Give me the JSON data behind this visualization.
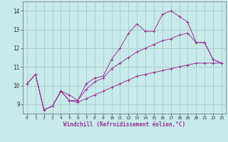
{
  "background_color": "#c8eaea",
  "grid_color": "#aacccc",
  "line_color": "#993399",
  "xlabel": "Windchill (Refroidissement éolien,°C)",
  "xlim": [
    -0.5,
    23.5
  ],
  "ylim": [
    8.5,
    14.5
  ],
  "yticks": [
    9,
    10,
    11,
    12,
    13,
    14
  ],
  "xticks": [
    0,
    1,
    2,
    3,
    4,
    5,
    6,
    7,
    8,
    9,
    10,
    11,
    12,
    13,
    14,
    15,
    16,
    17,
    18,
    19,
    20,
    21,
    22,
    23
  ],
  "series": [
    {
      "x": [
        0,
        1,
        2,
        3,
        4,
        5,
        6,
        7,
        8,
        9,
        10,
        11,
        12,
        13,
        14,
        15,
        16,
        17,
        18,
        19,
        20,
        21,
        22,
        23
      ],
      "y": [
        10.1,
        10.6,
        8.7,
        8.9,
        9.7,
        9.5,
        9.2,
        10.1,
        10.4,
        10.5,
        11.4,
        12.0,
        12.8,
        13.3,
        12.9,
        12.9,
        13.8,
        14.0,
        13.7,
        13.4,
        12.3,
        12.3,
        11.4,
        11.2
      ]
    },
    {
      "x": [
        0,
        1,
        2,
        3,
        4,
        5,
        6,
        7,
        8,
        9,
        10,
        11,
        12,
        13,
        14,
        15,
        16,
        17,
        18,
        19,
        20,
        21,
        22,
        23
      ],
      "y": [
        10.1,
        10.6,
        8.7,
        8.9,
        9.7,
        9.2,
        9.2,
        9.8,
        10.2,
        10.4,
        10.9,
        11.2,
        11.5,
        11.8,
        12.0,
        12.2,
        12.4,
        12.5,
        12.7,
        12.8,
        12.3,
        12.3,
        11.4,
        11.2
      ]
    },
    {
      "x": [
        0,
        1,
        2,
        3,
        4,
        5,
        6,
        7,
        8,
        9,
        10,
        11,
        12,
        13,
        14,
        15,
        16,
        17,
        18,
        19,
        20,
        21,
        22,
        23
      ],
      "y": [
        10.1,
        10.6,
        8.7,
        8.9,
        9.7,
        9.2,
        9.1,
        9.3,
        9.5,
        9.7,
        9.9,
        10.1,
        10.3,
        10.5,
        10.6,
        10.7,
        10.8,
        10.9,
        11.0,
        11.1,
        11.2,
        11.2,
        11.2,
        11.2
      ]
    }
  ]
}
